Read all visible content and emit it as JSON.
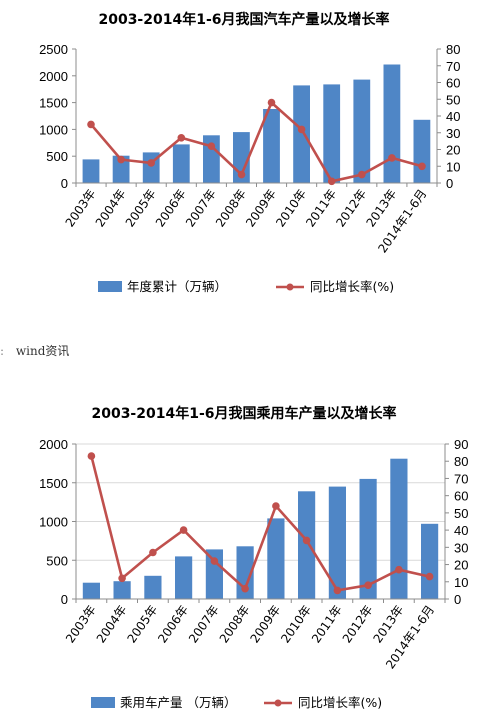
{
  "source_note": "wind资讯",
  "chart_data": [
    {
      "type": "bar",
      "title": "2003-2014年1-6月我国汽车产量以及增长率",
      "categories": [
        "2003年",
        "2004年",
        "2005年",
        "2006年",
        "2007年",
        "2008年",
        "2009年",
        "2010年",
        "2011年",
        "2012年",
        "2013年",
        "2014年1-6月"
      ],
      "series": [
        {
          "name": "年度累计（万辆）",
          "type": "bar",
          "axis": "left",
          "color": "#4F86C6",
          "values": [
            440,
            510,
            570,
            720,
            890,
            950,
            1380,
            1820,
            1840,
            1930,
            2210,
            1180
          ]
        },
        {
          "name": "同比增长率(%)",
          "type": "line",
          "axis": "right",
          "color": "#C0504D",
          "values": [
            35,
            14,
            12,
            27,
            22,
            5,
            48,
            32,
            1,
            5,
            15,
            10
          ]
        }
      ],
      "ylim": [
        0,
        2500
      ],
      "yticks": [
        "0",
        "500",
        "1000",
        "1500",
        "2000",
        "2500"
      ],
      "y2lim": [
        0,
        80
      ],
      "y2ticks": [
        "0",
        "10",
        "20",
        "30",
        "40",
        "50",
        "60",
        "70",
        "80"
      ],
      "legend_position": "bottom"
    },
    {
      "type": "bar",
      "title": "2003-2014年1-6月我国乘用车产量以及增长率",
      "categories": [
        "2003年",
        "2004年",
        "2005年",
        "2006年",
        "2007年",
        "2008年",
        "2009年",
        "2010年",
        "2011年",
        "2012年",
        "2013年",
        "2014年1-6月"
      ],
      "series": [
        {
          "name": "乘用车产量 （万辆）",
          "type": "bar",
          "axis": "left",
          "color": "#4F86C6",
          "values": [
            210,
            230,
            300,
            550,
            640,
            680,
            1040,
            1390,
            1450,
            1550,
            1810,
            970
          ]
        },
        {
          "name": "同比增长率(%)",
          "type": "line",
          "axis": "right",
          "color": "#C0504D",
          "values": [
            83,
            12,
            27,
            40,
            22,
            6,
            54,
            34,
            5,
            8,
            17,
            13
          ]
        }
      ],
      "ylim": [
        0,
        2000
      ],
      "yticks": [
        "0",
        "500",
        "1000",
        "1500",
        "2000"
      ],
      "y2lim": [
        0,
        90
      ],
      "y2ticks": [
        "0",
        "10",
        "20",
        "30",
        "40",
        "50",
        "60",
        "70",
        "80",
        "90"
      ],
      "legend_position": "bottom"
    }
  ]
}
